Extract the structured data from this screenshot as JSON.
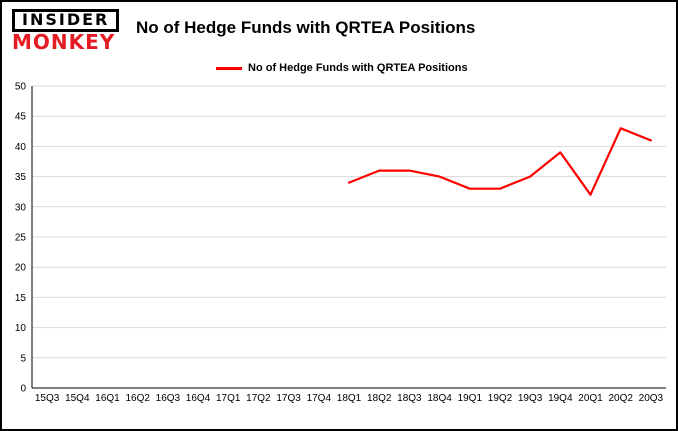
{
  "logo": {
    "line1": "INSIDER",
    "line2": "MONKEY"
  },
  "title": "No of Hedge Funds with QRTEA Positions",
  "legend": {
    "label": "No of Hedge Funds with QRTEA Positions"
  },
  "colors": {
    "series": "#ff0000",
    "grid": "#d9d9d9",
    "axis": "#000000",
    "logo_red": "#e31b23",
    "text": "#000000"
  },
  "chart_data": {
    "type": "line",
    "title": "No of Hedge Funds with QRTEA Positions",
    "categories": [
      "15Q3",
      "15Q4",
      "16Q1",
      "16Q2",
      "16Q3",
      "16Q4",
      "17Q1",
      "17Q2",
      "17Q3",
      "17Q4",
      "18Q1",
      "18Q2",
      "18Q3",
      "18Q4",
      "19Q1",
      "19Q2",
      "19Q3",
      "19Q4",
      "20Q1",
      "20Q2",
      "20Q3"
    ],
    "series": [
      {
        "name": "No of Hedge Funds with QRTEA Positions",
        "color": "#ff0000",
        "values": [
          null,
          null,
          null,
          null,
          null,
          null,
          null,
          null,
          null,
          null,
          34,
          36,
          36,
          35,
          33,
          33,
          35,
          39,
          32,
          43,
          41
        ]
      }
    ],
    "ylim": [
      0,
      50
    ],
    "yticks": [
      0,
      5,
      10,
      15,
      20,
      25,
      30,
      35,
      40,
      45,
      50
    ],
    "grid": true,
    "legend_position": "top-left"
  }
}
